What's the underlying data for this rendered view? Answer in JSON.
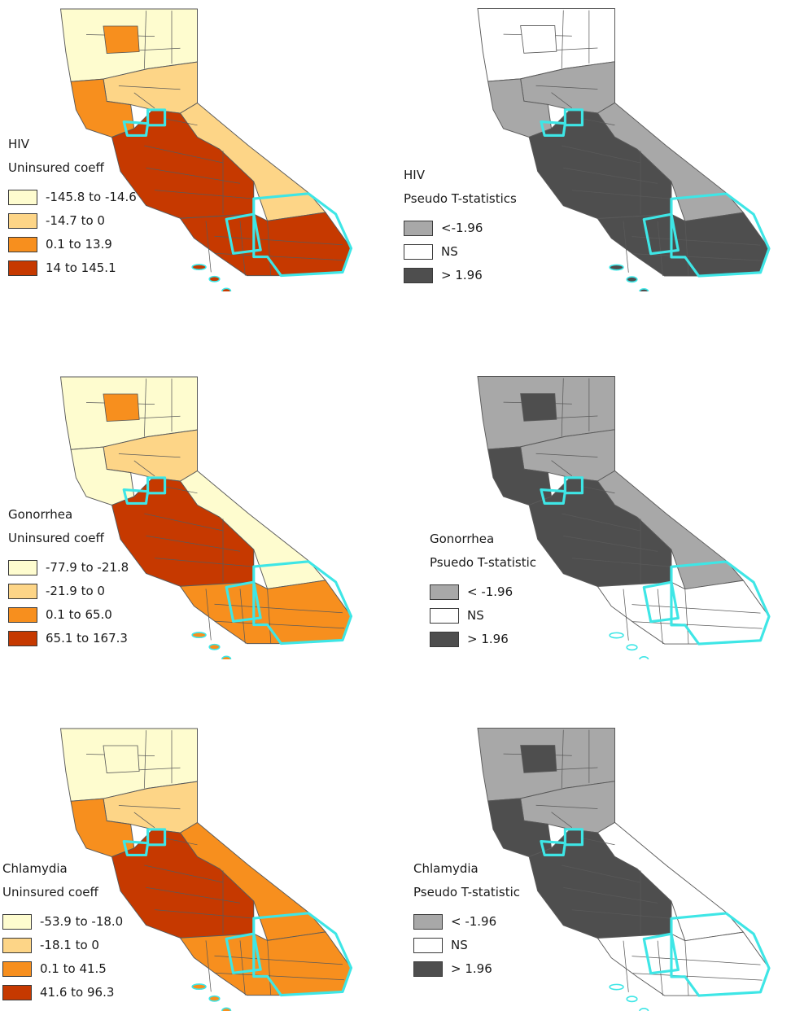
{
  "panels": [
    {
      "id": "hiv-coeff",
      "title": "HIV",
      "subtitle": "Uninsured coeff",
      "legend": [
        {
          "label": "-145.8 to -14.6",
          "color": "#fefccf"
        },
        {
          "label": "-14.7 to 0",
          "color": "#fdd587"
        },
        {
          "label": "0.1 to 13.9",
          "color": "#f78f1e"
        },
        {
          "label": "14 to 145.1",
          "color": "#c63900"
        }
      ]
    },
    {
      "id": "hiv-t",
      "title": "HIV",
      "subtitle": "Pseudo T-statistics",
      "legend": [
        {
          "label": "<-1.96",
          "color": "#a8a8a8"
        },
        {
          "label": "NS",
          "color": "#ffffff"
        },
        {
          "label": "> 1.96",
          "color": "#4e4e4e"
        }
      ]
    },
    {
      "id": "gon-coeff",
      "title": "Gonorrhea",
      "subtitle": "Uninsured coeff",
      "legend": [
        {
          "label": "-77.9 to -21.8",
          "color": "#fefccf"
        },
        {
          "label": "-21.9 to 0",
          "color": "#fdd587"
        },
        {
          "label": "0.1 to 65.0",
          "color": "#f78f1e"
        },
        {
          "label": "65.1 to 167.3",
          "color": "#c63900"
        }
      ]
    },
    {
      "id": "gon-t",
      "title": "Gonorrhea",
      "subtitle": "Psuedo T-statistic",
      "legend": [
        {
          "label": "< -1.96",
          "color": "#a8a8a8"
        },
        {
          "label": "NS",
          "color": "#ffffff"
        },
        {
          "label": "> 1.96",
          "color": "#4e4e4e"
        }
      ]
    },
    {
      "id": "chl-coeff",
      "title": "Chlamydia",
      "subtitle": "Uninsured coeff",
      "legend": [
        {
          "label": "-53.9 to -18.0",
          "color": "#fefccf"
        },
        {
          "label": "-18.1 to 0",
          "color": "#fdd587"
        },
        {
          "label": "0.1 to 41.5",
          "color": "#f78f1e"
        },
        {
          "label": "41.6 to 96.3",
          "color": "#c63900"
        }
      ]
    },
    {
      "id": "chl-t",
      "title": "Chlamydia",
      "subtitle": "Pseudo T-statistic",
      "legend": [
        {
          "label": "< -1.96",
          "color": "#a8a8a8"
        },
        {
          "label": "NS",
          "color": "#ffffff"
        },
        {
          "label": "> 1.96",
          "color": "#4e4e4e"
        }
      ]
    }
  ],
  "maps": [
    {
      "fill": {
        "north": "#fefccf",
        "sac": "#fdd587",
        "bay": "#f78f1e",
        "central": "#c63900",
        "east": "#fdd587",
        "south": "#c63900"
      },
      "extra": "#f78f1e"
    },
    {
      "fill": {
        "north": "#ffffff",
        "sac": "#a8a8a8",
        "bay": "#a8a8a8",
        "central": "#4e4e4e",
        "east": "#a8a8a8",
        "south": "#4e4e4e"
      },
      "extra": "#ffffff"
    },
    {
      "fill": {
        "north": "#fefccf",
        "sac": "#fdd587",
        "bay": "#fefccf",
        "central": "#c63900",
        "east": "#fefccf",
        "south": "#f78f1e"
      },
      "extra": "#f78f1e"
    },
    {
      "fill": {
        "north": "#a8a8a8",
        "sac": "#a8a8a8",
        "bay": "#4e4e4e",
        "central": "#4e4e4e",
        "east": "#a8a8a8",
        "south": "#ffffff"
      },
      "extra": "#4e4e4e"
    },
    {
      "fill": {
        "north": "#fefccf",
        "sac": "#fdd587",
        "bay": "#f78f1e",
        "central": "#c63900",
        "east": "#f78f1e",
        "south": "#f78f1e"
      },
      "extra": "#fefccf"
    },
    {
      "fill": {
        "north": "#a8a8a8",
        "sac": "#a8a8a8",
        "bay": "#4e4e4e",
        "central": "#4e4e4e",
        "east": "#ffffff",
        "south": "#ffffff"
      },
      "extra": "#4e4e4e"
    }
  ],
  "highlight_color": "#3ee6e6"
}
